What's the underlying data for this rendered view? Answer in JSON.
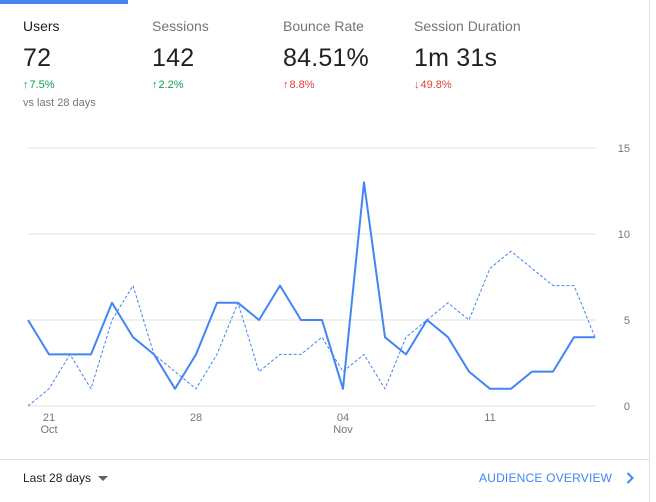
{
  "metrics": [
    {
      "label": "Users",
      "value": "72",
      "direction": "up",
      "change": "7.5%",
      "color": "#0f9d58",
      "comparison": "vs last 28 days",
      "active": true
    },
    {
      "label": "Sessions",
      "value": "142",
      "direction": "up",
      "change": "2.2%",
      "color": "#0f9d58"
    },
    {
      "label": "Bounce Rate",
      "value": "84.51%",
      "direction": "up",
      "change": "8.8%",
      "color": "#db4437"
    },
    {
      "label": "Session Duration",
      "value": "1m 31s",
      "direction": "down",
      "change": "49.8%",
      "color": "#db4437"
    }
  ],
  "chart_data": {
    "type": "line",
    "x_tick_labels": [
      {
        "day": "21",
        "month": "Oct"
      },
      {
        "day": "28",
        "month": ""
      },
      {
        "day": "04",
        "month": "Nov"
      },
      {
        "day": "11",
        "month": ""
      }
    ],
    "y_ticks": [
      0,
      5,
      10,
      15
    ],
    "ylim": [
      0,
      15
    ],
    "grid": true,
    "series": [
      {
        "style": "solid",
        "color": "#4285f4",
        "values": [
          5,
          3,
          3,
          3,
          6,
          4,
          3,
          1,
          3,
          6,
          6,
          5,
          7,
          5,
          5,
          1,
          13,
          4,
          3,
          5,
          4,
          2,
          1,
          1,
          2,
          2,
          4,
          4
        ]
      },
      {
        "style": "dashed",
        "color": "#4285f4",
        "values": [
          0,
          1,
          3,
          1,
          5,
          7,
          3,
          2,
          1,
          3,
          6,
          2,
          3,
          3,
          4,
          2,
          3,
          1,
          4,
          5,
          6,
          5,
          8,
          9,
          8,
          7,
          7,
          4
        ]
      }
    ]
  },
  "footer": {
    "date_range_label": "Last 28 days",
    "audience_link_label": "AUDIENCE OVERVIEW"
  },
  "icons": {
    "date_range": "chevron-down-icon",
    "audience_link": "chevron-right-icon",
    "trend_up": "arrow-up-icon",
    "trend_down": "arrow-down-icon"
  }
}
